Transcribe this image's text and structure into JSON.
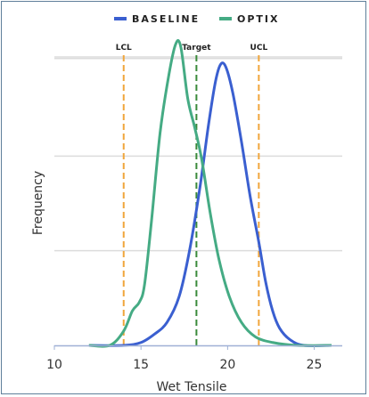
{
  "chart_data": {
    "type": "line",
    "title": "",
    "xlabel": "Wet Tensile",
    "ylabel": "Frequency",
    "xlim": [
      10,
      26
    ],
    "ylim": [
      0,
      1.08
    ],
    "x_ticks": [
      "10",
      "15",
      "20",
      "25"
    ],
    "x_tick_values": [
      10,
      15,
      20,
      25
    ],
    "y_gridlines": [
      0.33,
      0.66,
      1.0
    ],
    "legend_position": "top-center",
    "series": [
      {
        "name": "BASELINE",
        "color": "#3a5fd0",
        "x": [
          12,
          14,
          15,
          15.8,
          16.5,
          17.2,
          17.8,
          18.4,
          18.9,
          19.3,
          19.6,
          19.9,
          20.3,
          20.8,
          21.3,
          21.8,
          22.2,
          22.6,
          23.0,
          23.6,
          24.4,
          26
        ],
        "y": [
          0,
          0,
          0.01,
          0.04,
          0.08,
          0.17,
          0.33,
          0.55,
          0.77,
          0.92,
          0.98,
          0.97,
          0.88,
          0.71,
          0.52,
          0.36,
          0.22,
          0.12,
          0.06,
          0.02,
          0,
          0
        ]
      },
      {
        "name": "OPTIX",
        "color": "#45ab84",
        "x": [
          12,
          13.2,
          14,
          14.5,
          14.9,
          15.2,
          15.6,
          16.1,
          16.6,
          17.0,
          17.3,
          17.7,
          18.1,
          18.5,
          19.0,
          19.5,
          20.1,
          20.8,
          21.6,
          22.6,
          24,
          26
        ],
        "y": [
          0,
          0,
          0.05,
          0.12,
          0.15,
          0.21,
          0.43,
          0.74,
          0.94,
          1.05,
          1.04,
          0.86,
          0.76,
          0.65,
          0.46,
          0.3,
          0.17,
          0.08,
          0.03,
          0.01,
          0,
          0
        ]
      }
    ],
    "reference_lines": [
      {
        "label": "LCL",
        "x": 14,
        "color": "#f0a63c",
        "style": "dashed"
      },
      {
        "label": "Target",
        "x": 18.2,
        "color": "#3a8a3a",
        "style": "dashed"
      },
      {
        "label": "UCL",
        "x": 21.8,
        "color": "#f0a63c",
        "style": "dashed"
      }
    ]
  }
}
